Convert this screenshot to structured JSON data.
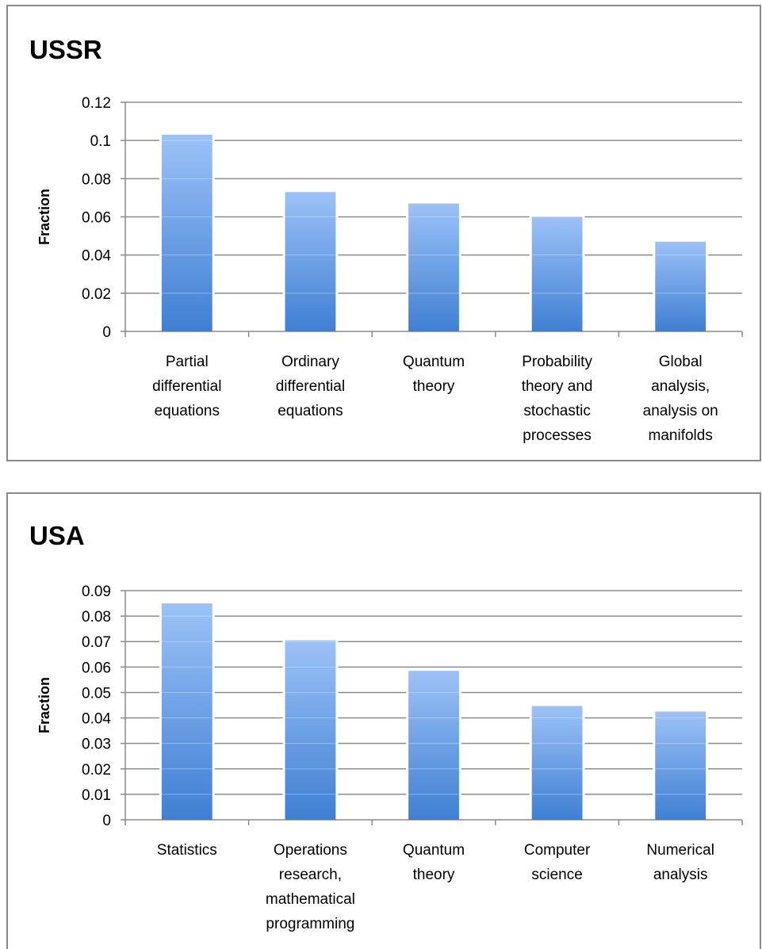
{
  "colors": {
    "bar_top": "#9cc2f7",
    "bar_bottom": "#3f7fd3",
    "grid": "#8c8c8c",
    "axis": "#8c8c8c",
    "border": "#8a8a8a"
  },
  "chart_data": [
    {
      "type": "bar",
      "title": "USSR",
      "xlabel": "",
      "ylabel": "Fraction",
      "ylim": [
        0,
        0.12
      ],
      "yticks": [
        "0",
        "0.02",
        "0.04",
        "0.06",
        "0.08",
        "0.1",
        "0.12"
      ],
      "grid": true,
      "legend": "none",
      "categories": [
        [
          "Partial",
          "differential",
          "equations"
        ],
        [
          "Ordinary",
          "differential",
          "equations"
        ],
        [
          "Quantum",
          "theory"
        ],
        [
          "Probability",
          "theory and",
          "stochastic",
          "processes"
        ],
        [
          "Global",
          "analysis,",
          "analysis on",
          "manifolds"
        ]
      ],
      "values": [
        0.103,
        0.073,
        0.067,
        0.06,
        0.047
      ]
    },
    {
      "type": "bar",
      "title": "USA",
      "xlabel": "",
      "ylabel": "Fraction",
      "ylim": [
        0,
        0.09
      ],
      "yticks": [
        "0",
        "0.01",
        "0.02",
        "0.03",
        "0.04",
        "0.05",
        "0.06",
        "0.07",
        "0.08",
        "0.09"
      ],
      "grid": true,
      "legend": "none",
      "categories": [
        [
          "Statistics"
        ],
        [
          "Operations",
          "research,",
          "mathematical",
          "programming"
        ],
        [
          "Quantum",
          "theory"
        ],
        [
          "Computer",
          "science"
        ],
        [
          "Numerical",
          "analysis"
        ]
      ],
      "values": [
        0.085,
        0.0705,
        0.0585,
        0.0447,
        0.0425
      ]
    }
  ]
}
